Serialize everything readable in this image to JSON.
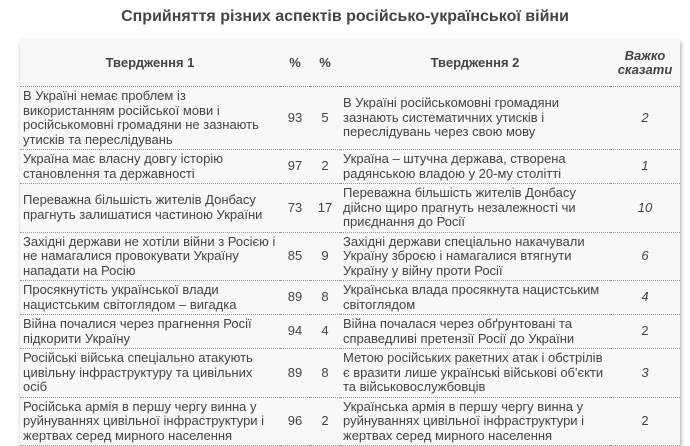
{
  "title": "Сприйняття різних аспектів російсько-української війни",
  "headers": {
    "s1": "Твердження 1",
    "p1": "%",
    "p2": "%",
    "s2": "Твердження 2",
    "hard": "Важко сказати"
  },
  "rows": [
    {
      "s1": "В Україні немає проблем із використанням російської мови і російськомовні громадяни не зазнають утисків та переслідувань",
      "p1": "93",
      "p2": "5",
      "s2": "В Україні російськомовні громадяни зазнають систематичних утисків і переслідувань через свою мову",
      "hard": "2",
      "italic": true
    },
    {
      "s1": "Україна має власну довгу історію становлення та державності",
      "p1": "97",
      "p2": "2",
      "s2": "Україна – штучна держава, створена радянською владою у 20-му столітті",
      "hard": "1",
      "italic": true
    },
    {
      "s1": "Переважна більшість жителів Донбасу прагнуть залишатися частиною України",
      "p1": "73",
      "p2": "17",
      "s2": "Переважна більшість жителів Донбасу дійсно щиро прагнуть незалежності чи приєднання до Росії",
      "hard": "10",
      "italic": true
    },
    {
      "s1": "Західні держави не хотіли війни з Росією і не намагалися провокувати Україну нападати на Росію",
      "p1": "85",
      "p2": "9",
      "s2": "Західні держави спеціально накачували Україну зброєю і намагалися втягнути Україну у війну проти Росії",
      "hard": "6",
      "italic": true
    },
    {
      "s1": "Просякнутість української влади нацистським світоглядом – вигадка",
      "p1": "89",
      "p2": "8",
      "s2": "Українська влада просякнута нацистським світоглядом",
      "hard": "4",
      "italic": true
    },
    {
      "s1": "Війна почалися через прагнення Росії підкорити Україну",
      "p1": "94",
      "p2": "4",
      "s2": "Війна почалася через обґрунтовані та справедливі претензії Росії до України",
      "hard": "2",
      "italic": false
    },
    {
      "s1": "Російські війська спеціально атакують цивільну інфраструктуру та цивільних осіб",
      "p1": "89",
      "p2": "8",
      "s2": "Метою російських ракетних атак і обстрілів є вразити лише українські військові об'єкти та військовослужбовців",
      "hard": "3",
      "italic": true
    },
    {
      "s1": "Російська армія в першу чергу винна у руйнуваннях цивільної інфраструктури і жертвах серед мирного населення",
      "p1": "96",
      "p2": "2",
      "s2": "Українська армія в першу чергу винна у руйнуваннях цивільної інфраструктури і жертвах серед мирного населення",
      "hard": "2",
      "italic": false
    }
  ]
}
